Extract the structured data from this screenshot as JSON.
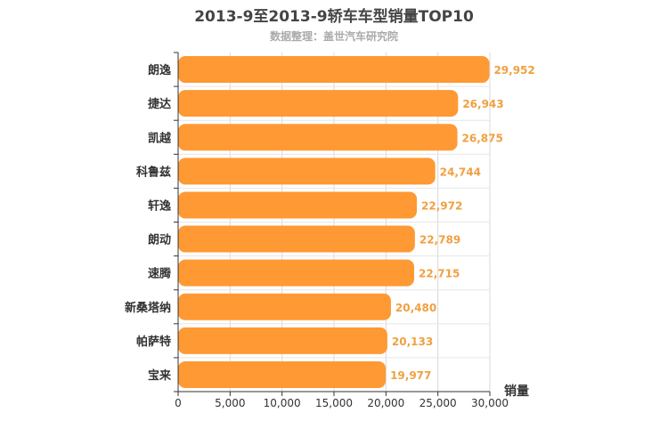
{
  "chart_data": {
    "type": "bar",
    "orientation": "horizontal",
    "title": "2013-9至2013-9轿车车型销量TOP10",
    "subtitle": "数据整理：盖世汽车研究院",
    "xlabel": "销量",
    "ylabel": "",
    "categories": [
      "朗逸",
      "捷达",
      "凯越",
      "科鲁兹",
      "轩逸",
      "朗动",
      "速腾",
      "新桑塔纳",
      "帕萨特",
      "宝来"
    ],
    "values": [
      29952,
      26943,
      26875,
      24744,
      22972,
      22789,
      22715,
      20480,
      20133,
      19977
    ],
    "data_labels": [
      "29,952",
      "26,943",
      "26,875",
      "24,744",
      "22,972",
      "22,789",
      "22,715",
      "20,480",
      "20,133",
      "19,977"
    ],
    "xlim": [
      0,
      30000
    ],
    "x_ticks": [
      0,
      5000,
      10000,
      15000,
      20000,
      25000,
      30000
    ],
    "x_tick_labels": [
      "0",
      "5,000",
      "10,000",
      "15,000",
      "20,000",
      "25,000",
      "30,000"
    ],
    "grid": true,
    "legend": "none",
    "bar_color": "#ff9933",
    "label_color": "#f0a040"
  }
}
